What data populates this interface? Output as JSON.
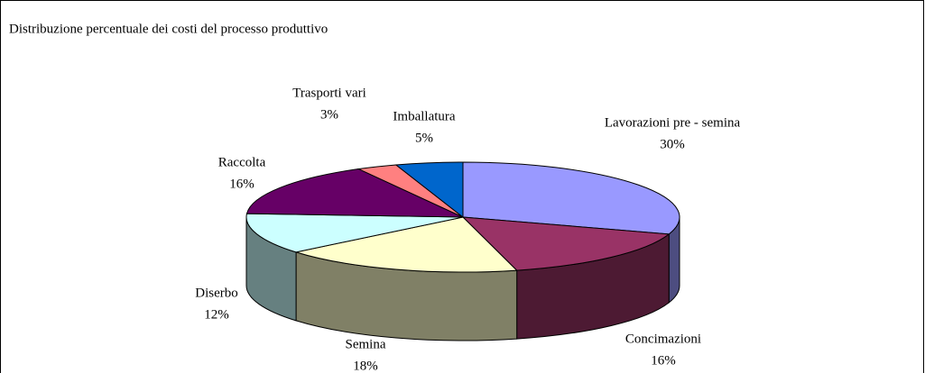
{
  "chart_data": {
    "type": "pie3d",
    "title": "Distribuzione percentuale dei costi  del processo produttivo",
    "categories": [
      "Lavorazioni pre - semina",
      "Concimazioni",
      "Semina",
      "Diserbo",
      "Raccolta",
      "Trasporti vari",
      "Imballatura"
    ],
    "values": [
      30,
      16,
      18,
      12,
      16,
      3,
      5
    ],
    "value_labels": [
      "30%",
      "16%",
      "18%",
      "12%",
      "16%",
      "3%",
      "5%"
    ],
    "colors": [
      "#9999ff",
      "#993366",
      "#ffffcc",
      "#ccffff",
      "#660066",
      "#ff8080",
      "#0066cc"
    ]
  }
}
